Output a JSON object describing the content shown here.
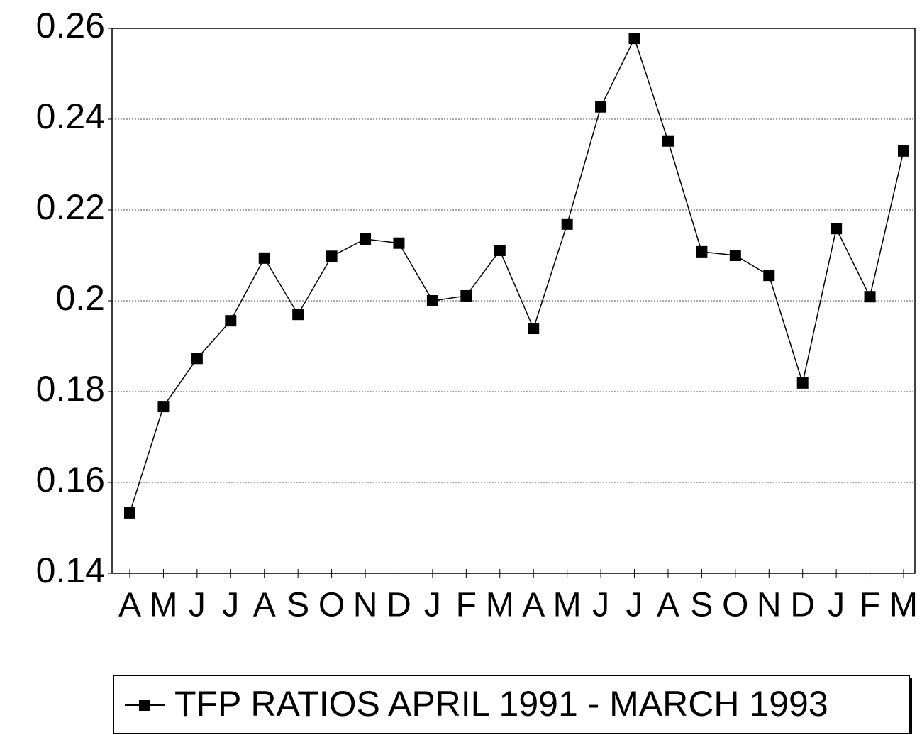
{
  "chart_data": {
    "type": "line",
    "categories": [
      "A",
      "M",
      "J",
      "J",
      "A",
      "S",
      "O",
      "N",
      "D",
      "J",
      "F",
      "M",
      "A",
      "M",
      "J",
      "J",
      "A",
      "S",
      "O",
      "N",
      "D",
      "J",
      "F",
      "M"
    ],
    "series": [
      {
        "name": "TFP RATIOS APRIL 1991 - MARCH 1993",
        "color": "#000000",
        "values": [
          0.1533,
          0.1767,
          0.1873,
          0.1956,
          0.2094,
          0.197,
          0.2098,
          0.2136,
          0.2127,
          0.2,
          0.2011,
          0.2111,
          0.1939,
          0.2169,
          0.2427,
          0.2578,
          0.2352,
          0.2108,
          0.21,
          0.2056,
          0.1819,
          0.2159,
          0.2009,
          0.233
        ]
      }
    ],
    "ylim": [
      0.14,
      0.26
    ],
    "yticks": [
      0.14,
      0.16,
      0.18,
      0.2,
      0.22,
      0.24,
      0.26
    ],
    "grid": true,
    "legend": "bottom"
  }
}
